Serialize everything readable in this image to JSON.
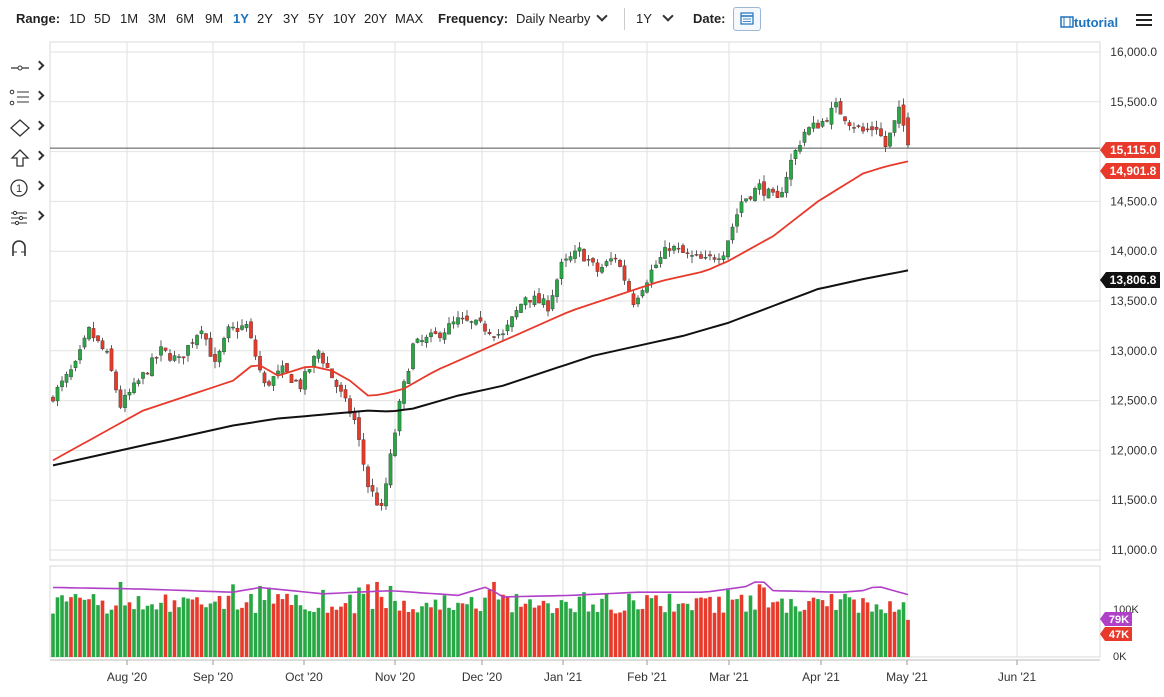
{
  "toolbar": {
    "range_label": "Range:",
    "ranges": [
      "1D",
      "5D",
      "1M",
      "3M",
      "6M",
      "9M",
      "1Y",
      "2Y",
      "3Y",
      "5Y",
      "10Y",
      "20Y",
      "MAX"
    ],
    "active_range": "1Y",
    "frequency_label": "Frequency:",
    "frequency_value": "Daily Nearby",
    "period_value": "1Y",
    "date_label": "Date:",
    "tutorial_label": "tutorial",
    "tutorial_icon": "film-icon",
    "menu_icon": "hamburger-icon"
  },
  "drawing_tools": [
    "line-tool-icon",
    "fib-tool-icon",
    "shape-tool-icon",
    "arrow-tool-icon",
    "numbered-marker-icon",
    "pattern-tool-icon",
    "magnet-icon"
  ],
  "chart_data": {
    "type": "candlestick",
    "price_axis": {
      "min": 10900,
      "max": 16100,
      "ticks": [
        "16,000.0",
        "15,500.0",
        "15,000.0",
        "14,500.0",
        "14,000.0",
        "13,500.0",
        "13,000.0",
        "12,500.0",
        "12,000.0",
        "11,500.0",
        "11,000.0"
      ],
      "tick_values": [
        16000,
        15500,
        15000,
        14500,
        14000,
        13500,
        13000,
        12500,
        12000,
        11500,
        11000
      ]
    },
    "x_labels": [
      "Aug '20",
      "Sep '20",
      "Oct '20",
      "Nov '20",
      "Dec '20",
      "Jan '21",
      "Feb '21",
      "Mar '21",
      "Apr '21",
      "May '21",
      "Jun '21"
    ],
    "price_badges": [
      {
        "text": "15,115.0",
        "color": "#e8392a",
        "value": 15115
      },
      {
        "text": "14,901.8",
        "color": "#e8392a",
        "value": 14901.8
      },
      {
        "text": "13,806.8",
        "color": "#111111",
        "value": 13806.8
      }
    ],
    "horizontal_line_value": 15115,
    "close_anchors": [
      [
        0,
        12550
      ],
      [
        5,
        12850
      ],
      [
        8,
        13200
      ],
      [
        12,
        12950
      ],
      [
        15,
        12450
      ],
      [
        20,
        12750
      ],
      [
        24,
        13000
      ],
      [
        28,
        12900
      ],
      [
        33,
        13250
      ],
      [
        36,
        12850
      ],
      [
        39,
        13200
      ],
      [
        43,
        13250
      ],
      [
        47,
        12650
      ],
      [
        51,
        12800
      ],
      [
        55,
        12650
      ],
      [
        59,
        13000
      ],
      [
        63,
        12650
      ],
      [
        67,
        12300
      ],
      [
        70,
        11650
      ],
      [
        73,
        11400
      ],
      [
        77,
        12450
      ],
      [
        80,
        13050
      ],
      [
        85,
        13150
      ],
      [
        90,
        13300
      ],
      [
        95,
        13250
      ],
      [
        100,
        13150
      ],
      [
        105,
        13550
      ],
      [
        110,
        13450
      ],
      [
        113,
        13850
      ],
      [
        117,
        14000
      ],
      [
        121,
        13800
      ],
      [
        125,
        13950
      ],
      [
        129,
        13500
      ],
      [
        133,
        13800
      ],
      [
        137,
        14050
      ],
      [
        141,
        13950
      ],
      [
        145,
        13900
      ],
      [
        149,
        14000
      ],
      [
        153,
        14500
      ],
      [
        157,
        14650
      ],
      [
        161,
        14500
      ],
      [
        164,
        14900
      ],
      [
        167,
        15200
      ],
      [
        171,
        15300
      ],
      [
        174,
        15450
      ],
      [
        177,
        15300
      ],
      [
        180,
        15200
      ],
      [
        183,
        15250
      ],
      [
        185,
        15050
      ],
      [
        188,
        15400
      ],
      [
        190,
        15115
      ]
    ],
    "ma50": [
      [
        0,
        11900
      ],
      [
        10,
        12150
      ],
      [
        20,
        12400
      ],
      [
        30,
        12550
      ],
      [
        40,
        12700
      ],
      [
        45,
        12880
      ],
      [
        50,
        12750
      ],
      [
        57,
        12850
      ],
      [
        62,
        12800
      ],
      [
        66,
        12700
      ],
      [
        70,
        12550
      ],
      [
        73,
        12560
      ],
      [
        78,
        12620
      ],
      [
        85,
        12800
      ],
      [
        95,
        13000
      ],
      [
        105,
        13200
      ],
      [
        115,
        13400
      ],
      [
        125,
        13550
      ],
      [
        135,
        13700
      ],
      [
        140,
        13750
      ],
      [
        145,
        13800
      ],
      [
        150,
        13900
      ],
      [
        160,
        14150
      ],
      [
        170,
        14500
      ],
      [
        180,
        14780
      ],
      [
        185,
        14850
      ],
      [
        190,
        14901.8
      ]
    ],
    "ma200": [
      [
        0,
        11850
      ],
      [
        10,
        11950
      ],
      [
        20,
        12050
      ],
      [
        30,
        12150
      ],
      [
        40,
        12250
      ],
      [
        50,
        12320
      ],
      [
        60,
        12360
      ],
      [
        70,
        12400
      ],
      [
        75,
        12390
      ],
      [
        80,
        12420
      ],
      [
        90,
        12550
      ],
      [
        100,
        12650
      ],
      [
        110,
        12800
      ],
      [
        120,
        12950
      ],
      [
        130,
        13050
      ],
      [
        140,
        13150
      ],
      [
        150,
        13280
      ],
      [
        160,
        13450
      ],
      [
        170,
        13620
      ],
      [
        180,
        13720
      ],
      [
        190,
        13806.8
      ]
    ],
    "volume_axis": {
      "max": 100000,
      "labels": [
        "100K",
        "0K"
      ]
    },
    "volume_badges": [
      {
        "text": "79K",
        "color": "#b040c8",
        "value": 79000
      },
      {
        "text": "47K",
        "color": "#e8392a",
        "value": 47000
      }
    ],
    "volume_spikes": [
      [
        15,
        95000
      ],
      [
        40,
        92000
      ],
      [
        46,
        90000
      ],
      [
        48,
        88000
      ],
      [
        60,
        85000
      ],
      [
        68,
        88000
      ],
      [
        69,
        80000
      ],
      [
        70,
        92000
      ],
      [
        72,
        95000
      ],
      [
        75,
        90000
      ],
      [
        97,
        85000
      ],
      [
        98,
        95000
      ],
      [
        118,
        82000
      ],
      [
        128,
        80000
      ],
      [
        134,
        78000
      ],
      [
        150,
        85000
      ],
      [
        157,
        92000
      ],
      [
        158,
        88000
      ],
      [
        176,
        80000
      ]
    ],
    "volume_ma_points": [
      [
        0,
        88000
      ],
      [
        20,
        86000
      ],
      [
        40,
        82000
      ],
      [
        46,
        88000
      ],
      [
        60,
        80000
      ],
      [
        75,
        84000
      ],
      [
        90,
        78000
      ],
      [
        97,
        90000
      ],
      [
        99,
        76000
      ],
      [
        115,
        78000
      ],
      [
        130,
        82000
      ],
      [
        145,
        82000
      ],
      [
        150,
        86000
      ],
      [
        155,
        90000
      ],
      [
        157,
        100000
      ],
      [
        160,
        84000
      ],
      [
        175,
        82000
      ],
      [
        180,
        84000
      ],
      [
        183,
        90000
      ],
      [
        190,
        79000
      ]
    ],
    "colors": {
      "up": "#27a844",
      "down": "#e8392a",
      "ma50": "#e8392a",
      "ma200": "#111111",
      "volume_ma": "#b040c8",
      "grid": "#e2e2e2",
      "horizontal_line": "#555555"
    }
  }
}
